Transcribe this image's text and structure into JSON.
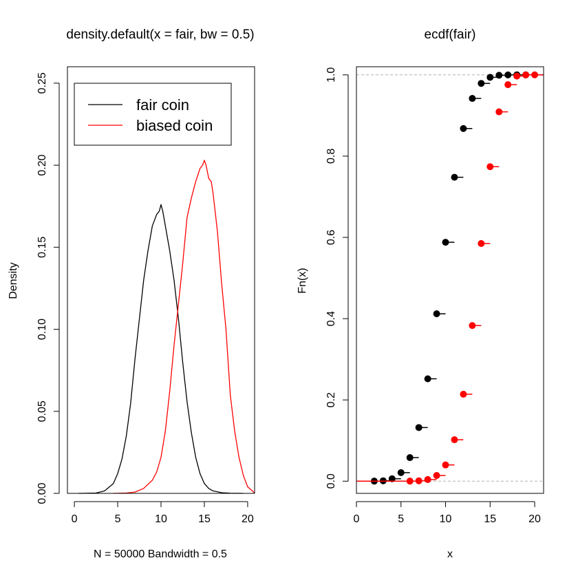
{
  "chart_data": [
    {
      "type": "line",
      "title": "density.default(x = fair, bw = 0.5)",
      "xlabel": "N = 50000   Bandwidth = 0.5",
      "ylabel": "Density",
      "xlim": [
        -0.8,
        20.8
      ],
      "ylim": [
        0,
        0.26
      ],
      "xticks": [
        "0",
        "5",
        "10",
        "15",
        "20"
      ],
      "yticks": [
        "0.00",
        "0.05",
        "0.10",
        "0.15",
        "0.20",
        "0.25"
      ],
      "grid": false,
      "legend": {
        "position": "top-left",
        "entries": [
          {
            "label": "fair coin",
            "color": "#000000"
          },
          {
            "label": "biased coin",
            "color": "#ff0000"
          }
        ]
      },
      "series": [
        {
          "name": "fair coin",
          "color": "#000000",
          "x": [
            0.5,
            2.5,
            3.5,
            4.5,
            5.0,
            5.5,
            6.0,
            6.5,
            7.0,
            7.5,
            8.0,
            8.5,
            9.0,
            9.5,
            9.8,
            10.0,
            10.2,
            10.5,
            11.0,
            11.5,
            12.0,
            12.5,
            13.0,
            13.5,
            14.0,
            14.5,
            15.0,
            15.5,
            16.0,
            17.0,
            18.0,
            19.5
          ],
          "y": [
            0.0,
            0.0002,
            0.0015,
            0.006,
            0.012,
            0.021,
            0.035,
            0.055,
            0.082,
            0.106,
            0.13,
            0.148,
            0.163,
            0.17,
            0.172,
            0.176,
            0.172,
            0.163,
            0.148,
            0.13,
            0.107,
            0.08,
            0.056,
            0.037,
            0.022,
            0.012,
            0.006,
            0.003,
            0.0015,
            0.0004,
            0.0001,
            0.0
          ]
        },
        {
          "name": "biased coin",
          "color": "#ff0000",
          "x": [
            4.5,
            6.0,
            7.0,
            8.0,
            9.0,
            9.5,
            10.0,
            10.5,
            11.0,
            11.5,
            12.0,
            12.5,
            13.0,
            13.5,
            14.0,
            14.5,
            14.8,
            15.0,
            15.2,
            15.5,
            15.8,
            16.0,
            16.5,
            17.0,
            17.5,
            18.0,
            18.5,
            19.0,
            19.5,
            20.0,
            20.8
          ],
          "y": [
            0.0,
            0.0002,
            0.0008,
            0.003,
            0.008,
            0.013,
            0.022,
            0.038,
            0.062,
            0.09,
            0.115,
            0.14,
            0.168,
            0.18,
            0.19,
            0.198,
            0.2,
            0.203,
            0.2,
            0.192,
            0.19,
            0.183,
            0.16,
            0.128,
            0.1,
            0.06,
            0.038,
            0.022,
            0.011,
            0.004,
            0.0003
          ]
        }
      ]
    },
    {
      "type": "scatter",
      "title": "ecdf(fair)",
      "xlabel": "x",
      "ylabel": "Fn(x)",
      "xlim": [
        0,
        21
      ],
      "ylim": [
        -0.03,
        1.02
      ],
      "xticks": [
        "0",
        "5",
        "10",
        "15",
        "20"
      ],
      "yticks": [
        "0.0",
        "0.2",
        "0.4",
        "0.6",
        "0.8",
        "1.0"
      ],
      "grid": false,
      "reference_lines": [
        0,
        1
      ],
      "series": [
        {
          "name": "fair coin",
          "color": "#000000",
          "x": [
            2,
            3,
            4,
            5,
            6,
            7,
            8,
            9,
            10,
            11,
            12,
            13,
            14,
            15,
            16,
            17,
            18,
            19
          ],
          "y": [
            0.0002,
            0.001,
            0.006,
            0.021,
            0.058,
            0.132,
            0.252,
            0.412,
            0.588,
            0.748,
            0.868,
            0.942,
            0.979,
            0.994,
            0.999,
            0.9999,
            1.0,
            1.0
          ]
        },
        {
          "name": "biased coin",
          "color": "#ff0000",
          "x": [
            6,
            7,
            8,
            9,
            10,
            11,
            12,
            13,
            14,
            15,
            16,
            17,
            18,
            19,
            20
          ],
          "y": [
            0.0002,
            0.001,
            0.004,
            0.014,
            0.04,
            0.102,
            0.214,
            0.383,
            0.585,
            0.774,
            0.909,
            0.976,
            0.997,
            0.9999,
            1.0
          ]
        }
      ]
    }
  ]
}
